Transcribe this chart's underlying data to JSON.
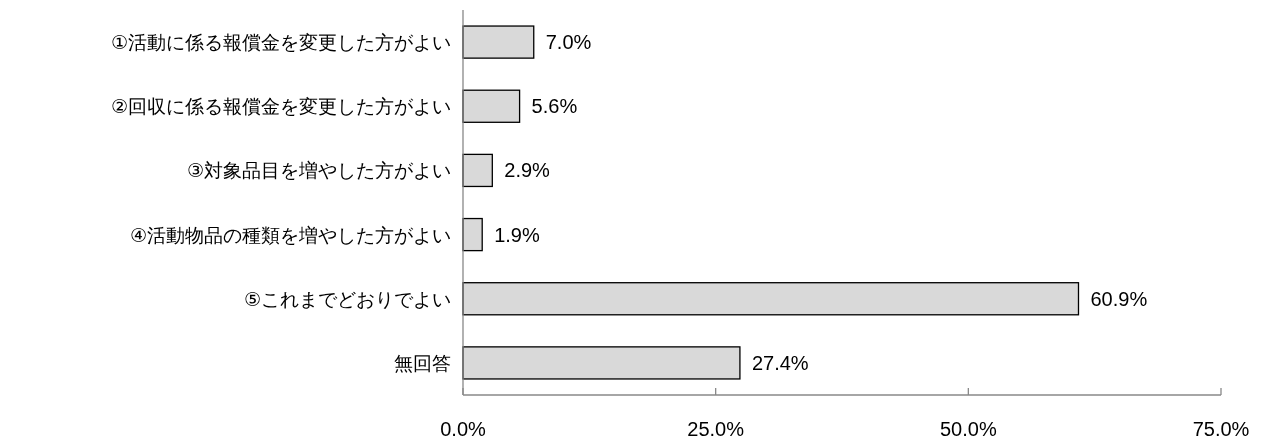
{
  "chart_data": {
    "type": "bar",
    "orientation": "horizontal",
    "categories": [
      "①活動に係る報償金を変更した方がよい",
      "②回収に係る報償金を変更した方がよい",
      "③対象品目を増やした方がよい",
      "④活動物品の種類を増やした方がよい",
      "⑤これまでどおりでよい",
      "無回答"
    ],
    "values": [
      7.0,
      5.6,
      2.9,
      1.9,
      60.9,
      27.4
    ],
    "value_labels": [
      "7.0%",
      "5.6%",
      "2.9%",
      "1.9%",
      "60.9%",
      "27.4%"
    ],
    "color": "#d9d9d9",
    "xlim": [
      0,
      75
    ],
    "xticks": [
      {
        "value": 0,
        "label": "0.0%"
      },
      {
        "value": 25,
        "label": "25.0%"
      },
      {
        "value": 50,
        "label": "50.0%"
      },
      {
        "value": 75,
        "label": "75.0%"
      }
    ]
  }
}
